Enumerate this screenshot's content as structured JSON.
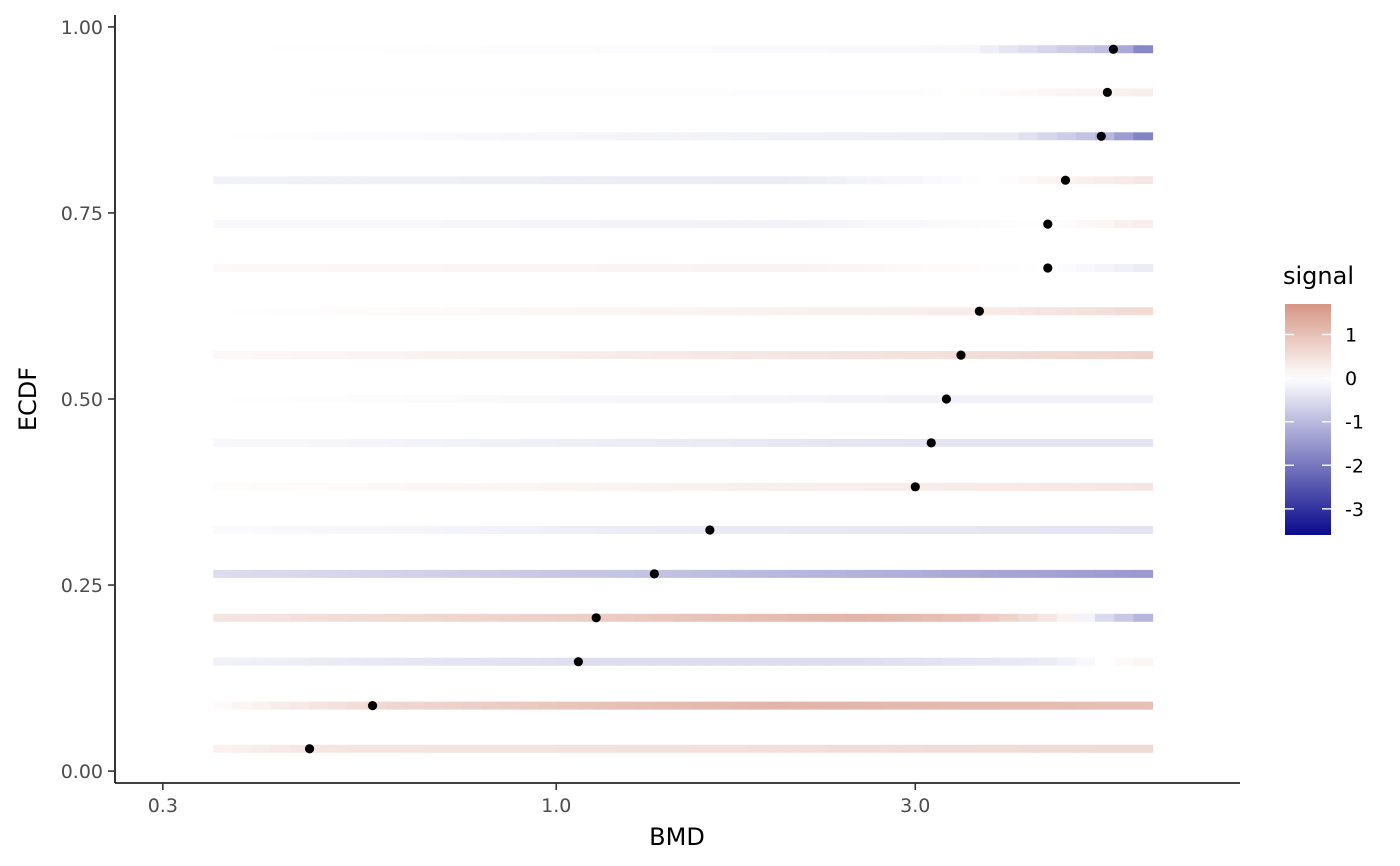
{
  "chart_data": {
    "type": "heatmap",
    "title": "",
    "xlabel": "BMD",
    "ylabel": "ECDF",
    "x_scale": "log10",
    "xlim": [
      0.3,
      7.0
    ],
    "ylim": [
      0.0,
      1.0
    ],
    "x_ticks": [
      0.3,
      1.0,
      3.0
    ],
    "x_tick_labels": [
      "0.3",
      "1.0",
      "3.0"
    ],
    "y_ticks": [
      0.0,
      0.25,
      0.5,
      0.75,
      1.0
    ],
    "y_tick_labels": [
      "0.00",
      "0.25",
      "0.50",
      "0.75",
      "1.00"
    ],
    "grid": false,
    "strip_x_range": [
      0.35,
      6.2
    ],
    "legend": {
      "title": "signal",
      "position": "right",
      "range": [
        -3.6,
        1.7
      ],
      "ticks": [
        1,
        0,
        -1,
        -2,
        -3
      ],
      "tick_labels": [
        "1",
        "0",
        "-1",
        "-2",
        "-3"
      ],
      "colors": {
        "low": "#0a0a8c",
        "mid": "#ffffff",
        "high": "#d59584"
      }
    },
    "rows": [
      {
        "ecdf": 0.03,
        "bmd": 0.47,
        "stops": [
          [
            0.35,
            0.2
          ],
          [
            0.47,
            0.4
          ],
          [
            6.2,
            0.6
          ]
        ]
      },
      {
        "ecdf": 0.088,
        "bmd": 0.57,
        "stops": [
          [
            0.35,
            0.05
          ],
          [
            0.57,
            0.6
          ],
          [
            1.2,
            1.0
          ],
          [
            2.0,
            1.2
          ],
          [
            6.2,
            1.0
          ]
        ]
      },
      {
        "ecdf": 0.147,
        "bmd": 1.07,
        "stops": [
          [
            0.35,
            -0.2
          ],
          [
            1.07,
            -0.5
          ],
          [
            2.5,
            -0.5
          ],
          [
            4.5,
            -0.3
          ],
          [
            5.5,
            0.05
          ],
          [
            6.2,
            0.2
          ]
        ]
      },
      {
        "ecdf": 0.206,
        "bmd": 1.13,
        "stops": [
          [
            0.35,
            0.4
          ],
          [
            1.13,
            0.8
          ],
          [
            2.5,
            1.2
          ],
          [
            3.5,
            1.0
          ],
          [
            4.7,
            0.3
          ],
          [
            5.3,
            -0.5
          ],
          [
            6.2,
            -1.2
          ]
        ]
      },
      {
        "ecdf": 0.265,
        "bmd": 1.35,
        "stops": [
          [
            0.35,
            -0.5
          ],
          [
            1.35,
            -0.9
          ],
          [
            3.0,
            -1.2
          ],
          [
            6.2,
            -1.5
          ]
        ]
      },
      {
        "ecdf": 0.324,
        "bmd": 1.6,
        "stops": [
          [
            0.35,
            -0.05
          ],
          [
            1.6,
            -0.3
          ],
          [
            6.2,
            -0.4
          ]
        ]
      },
      {
        "ecdf": 0.382,
        "bmd": 3.0,
        "stops": [
          [
            0.35,
            0.05
          ],
          [
            3.0,
            0.3
          ],
          [
            6.2,
            0.4
          ]
        ]
      },
      {
        "ecdf": 0.441,
        "bmd": 3.15,
        "stops": [
          [
            0.35,
            -0.1
          ],
          [
            3.15,
            -0.4
          ],
          [
            6.2,
            -0.4
          ]
        ]
      },
      {
        "ecdf": 0.5,
        "bmd": 3.3,
        "stops": [
          [
            0.35,
            0.0
          ],
          [
            3.3,
            -0.2
          ],
          [
            6.2,
            -0.2
          ]
        ]
      },
      {
        "ecdf": 0.559,
        "bmd": 3.45,
        "stops": [
          [
            0.35,
            0.1
          ],
          [
            3.45,
            0.5
          ],
          [
            6.2,
            0.7
          ]
        ]
      },
      {
        "ecdf": 0.618,
        "bmd": 3.65,
        "stops": [
          [
            0.35,
            0.0
          ],
          [
            3.65,
            0.3
          ],
          [
            6.2,
            0.6
          ]
        ]
      },
      {
        "ecdf": 0.676,
        "bmd": 4.5,
        "stops": [
          [
            0.35,
            0.1
          ],
          [
            2.0,
            0.2
          ],
          [
            4.5,
            0.0
          ],
          [
            6.2,
            -0.3
          ]
        ]
      },
      {
        "ecdf": 0.735,
        "bmd": 4.5,
        "stops": [
          [
            0.35,
            -0.1
          ],
          [
            2.0,
            -0.2
          ],
          [
            4.5,
            0.0
          ],
          [
            6.2,
            0.3
          ]
        ]
      },
      {
        "ecdf": 0.794,
        "bmd": 4.75,
        "stops": [
          [
            0.35,
            -0.2
          ],
          [
            2.0,
            -0.3
          ],
          [
            3.8,
            0.0
          ],
          [
            4.75,
            0.2
          ],
          [
            6.2,
            0.4
          ]
        ]
      },
      {
        "ecdf": 0.853,
        "bmd": 5.3,
        "stops": [
          [
            0.35,
            0.0
          ],
          [
            4.0,
            -0.3
          ],
          [
            5.3,
            -1.0
          ],
          [
            6.2,
            -2.0
          ]
        ]
      },
      {
        "ecdf": 0.912,
        "bmd": 5.4,
        "stops": [
          [
            0.35,
            0.0
          ],
          [
            3.0,
            -0.05
          ],
          [
            5.4,
            0.2
          ],
          [
            6.2,
            0.3
          ]
        ]
      },
      {
        "ecdf": 0.97,
        "bmd": 5.5,
        "stops": [
          [
            0.35,
            0.0
          ],
          [
            3.5,
            -0.1
          ],
          [
            5.5,
            -1.0
          ],
          [
            6.2,
            -2.0
          ]
        ]
      }
    ]
  }
}
